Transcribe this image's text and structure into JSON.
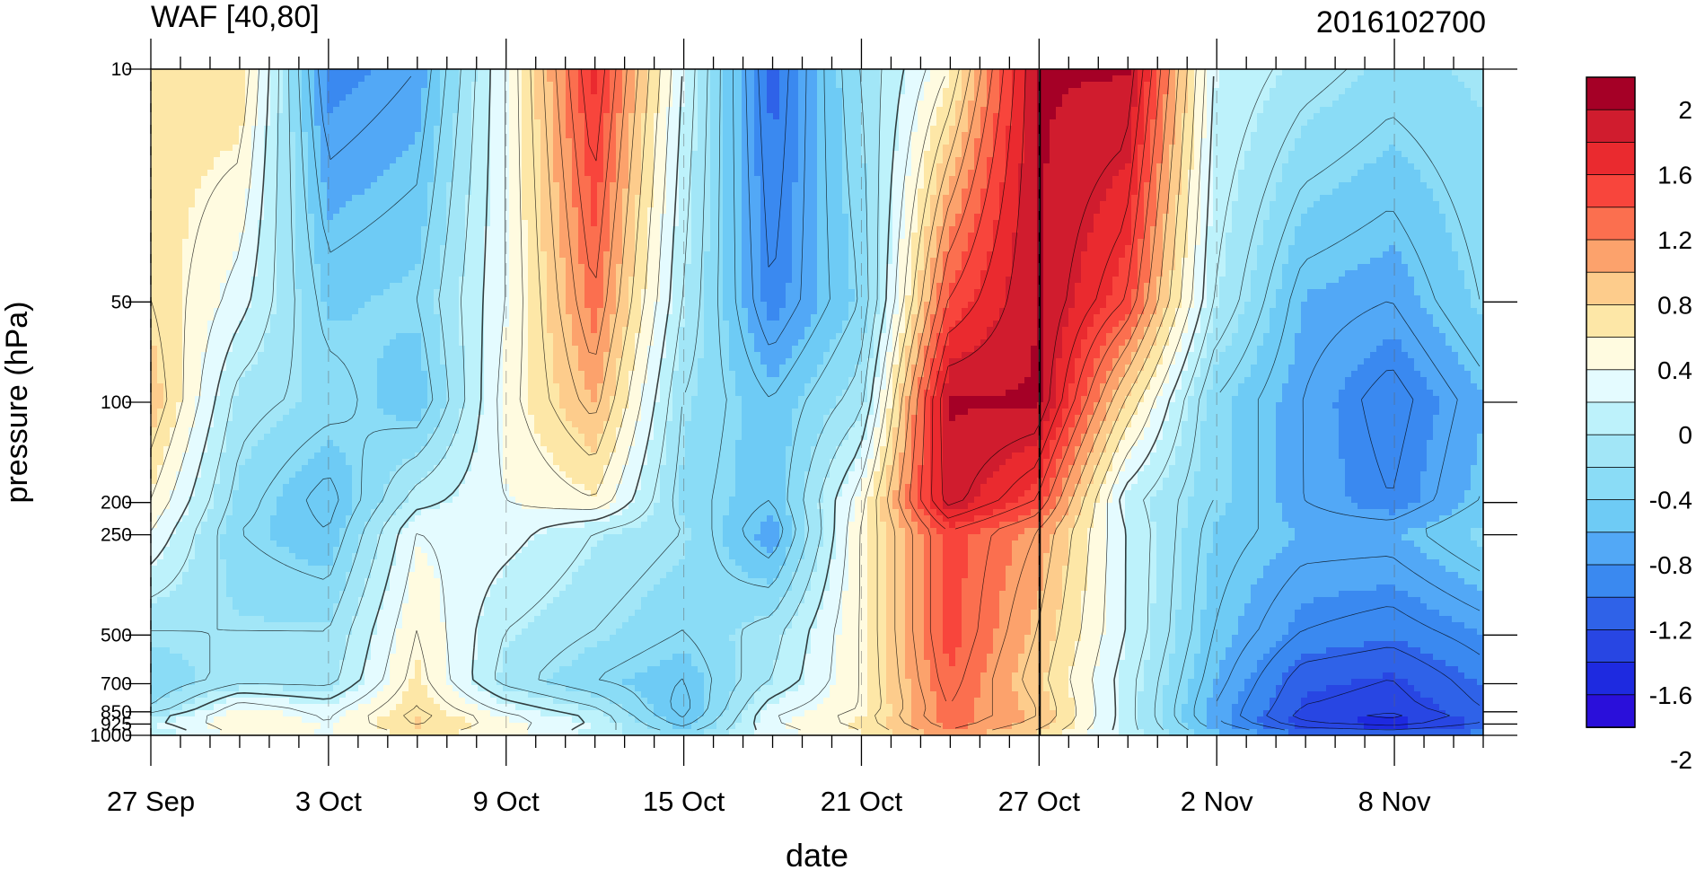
{
  "chart_data": {
    "type": "heatmap",
    "title": "WAF [40,80]",
    "subtitle": "2016102700",
    "xlabel": "date",
    "ylabel": "pressure (hPa)",
    "x_tick_labels": [
      "27 Sep",
      "3 Oct",
      "9 Oct",
      "15 Oct",
      "21 Oct",
      "27 Oct",
      "2 Nov",
      "8 Nov"
    ],
    "x_tick_days": [
      0,
      6,
      12,
      18,
      24,
      30,
      36,
      42
    ],
    "x_range_days": [
      0,
      45
    ],
    "y_levels_hPa": [
      10,
      50,
      100,
      200,
      250,
      500,
      700,
      850,
      925,
      1000
    ],
    "y_tick_labels": [
      "10",
      "50",
      "100",
      "200",
      "250",
      "500",
      "700",
      "850",
      "925",
      "1000"
    ],
    "y_range": [
      1000,
      10
    ],
    "y_scale": "log",
    "reference_line": "27 Oct",
    "colorbar": {
      "labels": [
        "2",
        "1.6",
        "1.2",
        "0.8",
        "0.4",
        "0",
        "-0.4",
        "-0.8",
        "-1.2",
        "-1.6",
        "-2"
      ],
      "colors": [
        "#a50026",
        "#d01c2e",
        "#ea2a2f",
        "#f8453c",
        "#fb6f4f",
        "#fca26c",
        "#fdcc8c",
        "#fde7a7",
        "#fffbe0",
        "#e4fbff",
        "#bdf2fb",
        "#a2e6f7",
        "#8adcf6",
        "#6ecbf5",
        "#52a8f6",
        "#3a89f0",
        "#2f62e8",
        "#2846e3",
        "#1e2ae0",
        "#2a0fda"
      ]
    },
    "grid": false,
    "legend": "right",
    "values": {
      "days": [
        0,
        3,
        6,
        9,
        12,
        15,
        18,
        21,
        24,
        27,
        30,
        33,
        36,
        39,
        42,
        45
      ],
      "levels_hPa": [
        10,
        50,
        100,
        200,
        250,
        500,
        700,
        850,
        925,
        1000
      ],
      "waf": [
        [
          0.5,
          0.6,
          -1.2,
          -1.0,
          0.2,
          1.6,
          0.0,
          -1.4,
          -0.4,
          0.4,
          2.0,
          2.0,
          0.0,
          -0.3,
          -0.5,
          -0.4
        ],
        [
          0.6,
          0.1,
          -0.7,
          -0.6,
          0.2,
          1.2,
          -0.2,
          -1.2,
          -0.6,
          1.4,
          2.0,
          1.4,
          -0.2,
          -0.9,
          -1.0,
          -0.6
        ],
        [
          0.8,
          -0.3,
          -0.5,
          -0.8,
          0.3,
          0.9,
          -0.4,
          -0.8,
          -0.3,
          2.0,
          2.0,
          0.6,
          -0.6,
          -1.0,
          -1.3,
          -0.9
        ],
        [
          0.4,
          -0.5,
          -0.9,
          -0.1,
          0.2,
          0.4,
          -0.5,
          -0.8,
          0.3,
          1.9,
          1.4,
          -0.1,
          -0.6,
          -1.0,
          -1.2,
          -0.8
        ],
        [
          0.2,
          -0.6,
          -0.8,
          0.2,
          0.1,
          -0.2,
          -0.4,
          -1.0,
          0.4,
          1.4,
          1.0,
          0.0,
          -0.7,
          -0.9,
          -0.9,
          -0.6
        ],
        [
          -0.4,
          -0.4,
          -0.4,
          0.4,
          -0.2,
          -0.4,
          -0.6,
          -0.3,
          0.4,
          1.4,
          0.8,
          0.0,
          -0.8,
          -1.2,
          -1.3,
          -1.1
        ],
        [
          -0.6,
          -0.3,
          -0.3,
          0.5,
          -0.3,
          -0.6,
          -0.8,
          -0.2,
          0.4,
          1.3,
          0.7,
          -0.1,
          -0.9,
          -1.5,
          -1.6,
          -1.3
        ],
        [
          -0.4,
          0.3,
          0.1,
          0.6,
          0.1,
          -0.2,
          -0.9,
          0.1,
          0.4,
          1.2,
          0.8,
          -0.1,
          -1.0,
          -1.6,
          -1.7,
          -1.4
        ],
        [
          0.0,
          0.4,
          0.2,
          0.7,
          0.3,
          0.0,
          -0.8,
          0.2,
          0.5,
          1.2,
          0.8,
          -0.1,
          -1.0,
          -1.7,
          -1.9,
          -1.5
        ],
        [
          -0.2,
          0.3,
          0.2,
          0.5,
          0.3,
          -0.1,
          -0.5,
          0.1,
          0.4,
          1.0,
          0.6,
          -0.1,
          -0.8,
          -1.3,
          -1.4,
          -1.2
        ]
      ]
    }
  }
}
